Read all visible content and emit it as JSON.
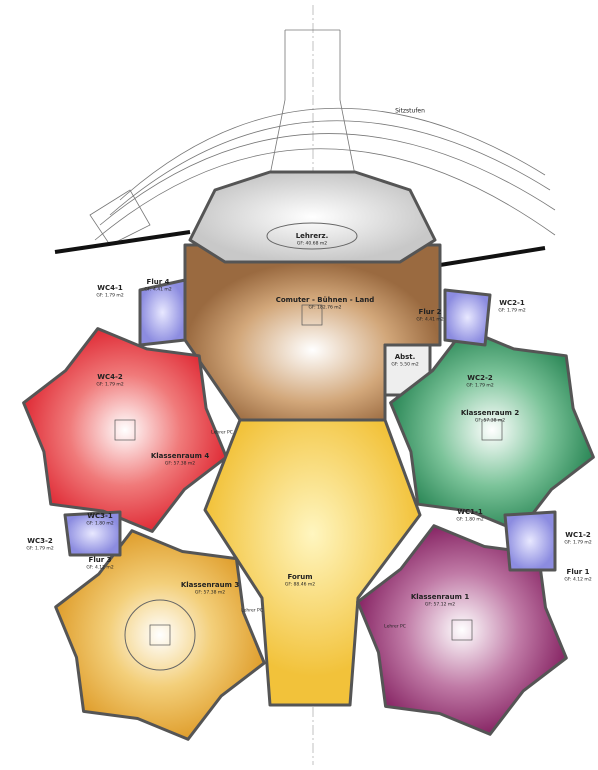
{
  "plan": {
    "seating_label": "Sitzstufen",
    "teacher_pc": [
      "Lehrer PC",
      "Lehrer PC",
      "Lehrer PC"
    ],
    "rooms": [
      {
        "name": "Lehrerz.",
        "area": "GF: 40.68 m2"
      },
      {
        "name": "Comuter - Bühnen - Land",
        "area": "GF: 182.76 m2"
      },
      {
        "name": "Flur 4",
        "area": "GF: 4.41 m2"
      },
      {
        "name": "WC4-1",
        "area": "GF: 1.79 m2"
      },
      {
        "name": "Flur 2",
        "area": "GF: 4.41 m2"
      },
      {
        "name": "WC2-1",
        "area": "GF: 1.79 m2"
      },
      {
        "name": "Abst.",
        "area": "GF: 5.50 m2"
      },
      {
        "name": "WC4-2",
        "area": "GF: 1.79 m2"
      },
      {
        "name": "WC2-2",
        "area": "GF: 1.79 m2"
      },
      {
        "name": "Klassenraum 4",
        "area": "GF: 57.38 m2"
      },
      {
        "name": "Klassenraum 2",
        "area": "GF: 57.38 m2"
      },
      {
        "name": "WC3-1",
        "area": "GF: 1.80 m2"
      },
      {
        "name": "WC1-1",
        "area": "GF: 1.80 m2"
      },
      {
        "name": "WC3-2",
        "area": "GF: 1.79 m2"
      },
      {
        "name": "WC1-2",
        "area": "GF: 1.79 m2"
      },
      {
        "name": "Flur 3",
        "area": "GF: 4.12 m2"
      },
      {
        "name": "Flur 1",
        "area": "GF: 4.12 m2"
      },
      {
        "name": "Klassenraum 3",
        "area": "GF: 57.38 m2"
      },
      {
        "name": "Klassenraum 1",
        "area": "GF: 57.12 m2"
      },
      {
        "name": "Forum",
        "area": "GF: 88.46 m2"
      }
    ]
  }
}
